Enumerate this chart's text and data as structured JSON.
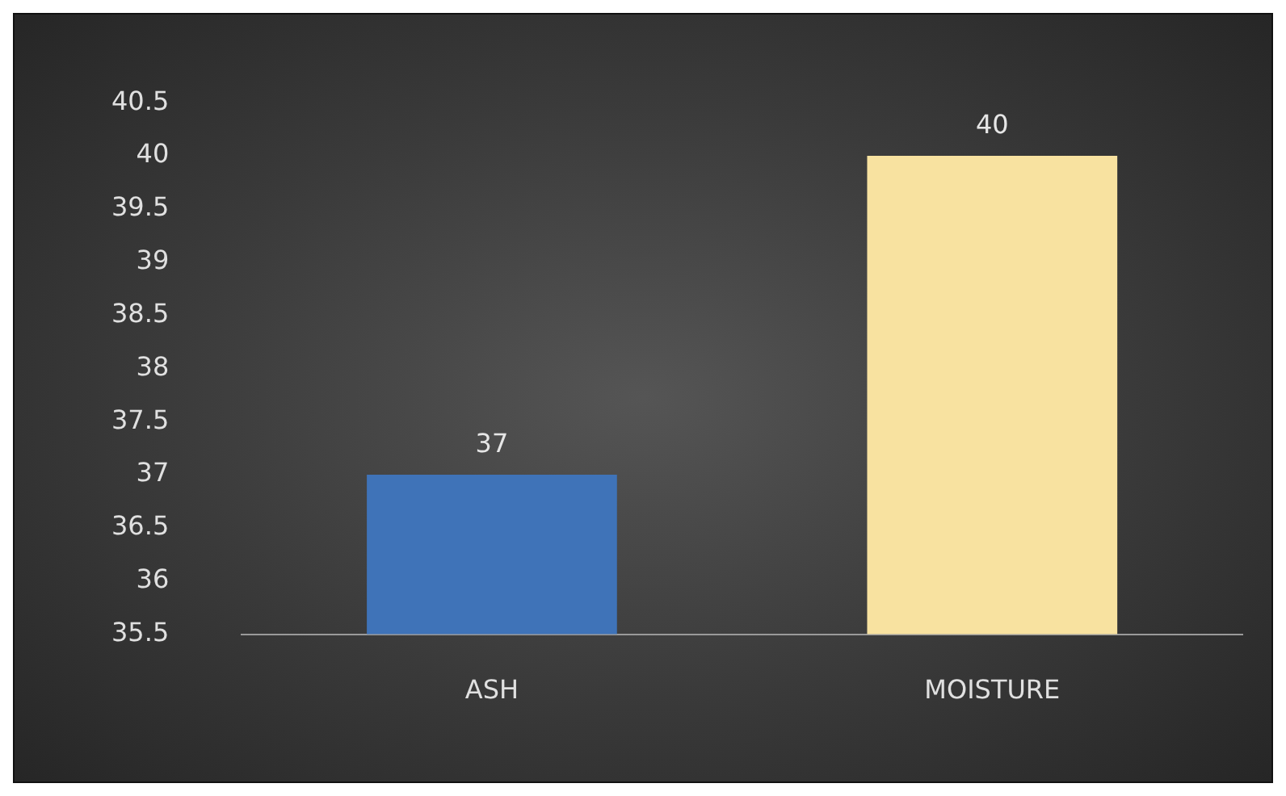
{
  "chart_data": {
    "type": "bar",
    "categories": [
      "ASH",
      "MOISTURE"
    ],
    "values": [
      37,
      40
    ],
    "colors": [
      "#3f73b8",
      "#f8e2a0"
    ],
    "ylim": [
      35.5,
      40.5
    ],
    "yticks": [
      35.5,
      36,
      36.5,
      37,
      37.5,
      38,
      38.5,
      39,
      39.5,
      40,
      40.5
    ],
    "grid": false,
    "legend": false,
    "data_labels": true
  }
}
